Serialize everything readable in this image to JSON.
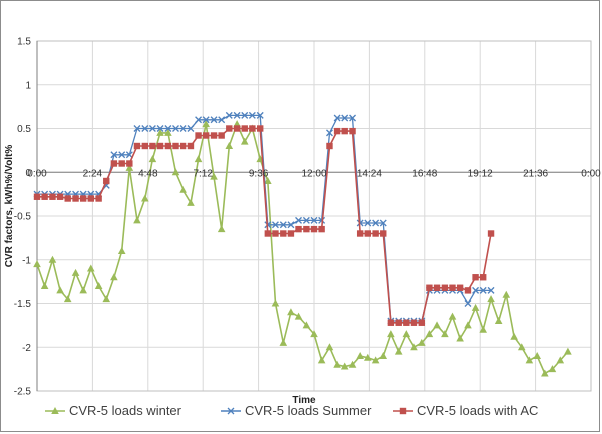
{
  "chart_data": {
    "type": "line",
    "title": "",
    "xlabel": "Time",
    "ylabel": "CVR factors, kWh%/Volt%",
    "ylim": [
      -2.5,
      1.5
    ],
    "y_ticks": [
      "1.5",
      "1",
      "0.5",
      "0",
      "-0.5",
      "-1",
      "-1.5",
      "-2",
      "-2.5"
    ],
    "x_tick_labels": [
      "0:00",
      "2:24",
      "4:48",
      "7:12",
      "9:36",
      "12:00",
      "14:24",
      "16:48",
      "19:12",
      "21:36",
      "0:00"
    ],
    "x_range_hours": [
      0,
      24
    ],
    "grid": true,
    "legend_position": "bottom",
    "series": [
      {
        "name": "CVR-5 loads winter",
        "color": "#9bbb59",
        "marker": "triangle",
        "points": [
          [
            0.0,
            -1.05
          ],
          [
            0.33,
            -1.3
          ],
          [
            0.67,
            -1.0
          ],
          [
            1.0,
            -1.35
          ],
          [
            1.33,
            -1.45
          ],
          [
            1.67,
            -1.15
          ],
          [
            2.0,
            -1.35
          ],
          [
            2.33,
            -1.1
          ],
          [
            2.67,
            -1.3
          ],
          [
            3.0,
            -1.45
          ],
          [
            3.33,
            -1.2
          ],
          [
            3.67,
            -0.9
          ],
          [
            4.0,
            0.05
          ],
          [
            4.33,
            -0.55
          ],
          [
            4.67,
            -0.3
          ],
          [
            5.0,
            0.15
          ],
          [
            5.33,
            0.45
          ],
          [
            5.67,
            0.45
          ],
          [
            6.0,
            0.0
          ],
          [
            6.33,
            -0.2
          ],
          [
            6.67,
            -0.35
          ],
          [
            7.0,
            0.15
          ],
          [
            7.33,
            0.55
          ],
          [
            7.67,
            -0.05
          ],
          [
            8.0,
            -0.65
          ],
          [
            8.33,
            0.3
          ],
          [
            8.67,
            0.55
          ],
          [
            9.0,
            0.35
          ],
          [
            9.33,
            0.5
          ],
          [
            9.67,
            0.15
          ],
          [
            10.0,
            -0.1
          ],
          [
            10.33,
            -1.5
          ],
          [
            10.67,
            -1.95
          ],
          [
            11.0,
            -1.6
          ],
          [
            11.33,
            -1.65
          ],
          [
            11.67,
            -1.75
          ],
          [
            12.0,
            -1.85
          ],
          [
            12.33,
            -2.15
          ],
          [
            12.67,
            -2.0
          ],
          [
            13.0,
            -2.2
          ],
          [
            13.33,
            -2.22
          ],
          [
            13.67,
            -2.2
          ],
          [
            14.0,
            -2.1
          ],
          [
            14.33,
            -2.12
          ],
          [
            14.67,
            -2.15
          ],
          [
            15.0,
            -2.1
          ],
          [
            15.33,
            -1.85
          ],
          [
            15.67,
            -2.05
          ],
          [
            16.0,
            -1.85
          ],
          [
            16.33,
            -2.0
          ],
          [
            16.67,
            -1.95
          ],
          [
            17.0,
            -1.85
          ],
          [
            17.33,
            -1.75
          ],
          [
            17.67,
            -1.85
          ],
          [
            18.0,
            -1.65
          ],
          [
            18.33,
            -1.9
          ],
          [
            18.67,
            -1.75
          ],
          [
            19.0,
            -1.55
          ],
          [
            19.33,
            -1.8
          ],
          [
            19.67,
            -1.45
          ],
          [
            20.0,
            -1.7
          ],
          [
            20.33,
            -1.4
          ],
          [
            20.67,
            -1.88
          ],
          [
            21.0,
            -2.0
          ],
          [
            21.33,
            -2.15
          ],
          [
            21.67,
            -2.1
          ],
          [
            22.0,
            -2.3
          ],
          [
            22.33,
            -2.25
          ],
          [
            22.67,
            -2.15
          ],
          [
            23.0,
            -2.05
          ]
        ]
      },
      {
        "name": "CVR-5 loads Summer",
        "color": "#4f81bd",
        "marker": "x",
        "points": [
          [
            0.0,
            -0.25
          ],
          [
            0.33,
            -0.25
          ],
          [
            0.67,
            -0.25
          ],
          [
            1.0,
            -0.25
          ],
          [
            1.33,
            -0.25
          ],
          [
            1.67,
            -0.25
          ],
          [
            2.0,
            -0.25
          ],
          [
            2.33,
            -0.25
          ],
          [
            2.67,
            -0.25
          ],
          [
            3.0,
            -0.15
          ],
          [
            3.33,
            0.2
          ],
          [
            3.67,
            0.2
          ],
          [
            4.0,
            0.2
          ],
          [
            4.33,
            0.5
          ],
          [
            4.67,
            0.5
          ],
          [
            5.0,
            0.5
          ],
          [
            5.33,
            0.5
          ],
          [
            5.67,
            0.5
          ],
          [
            6.0,
            0.5
          ],
          [
            6.33,
            0.5
          ],
          [
            6.67,
            0.5
          ],
          [
            7.0,
            0.6
          ],
          [
            7.33,
            0.6
          ],
          [
            7.67,
            0.6
          ],
          [
            8.0,
            0.6
          ],
          [
            8.33,
            0.65
          ],
          [
            8.67,
            0.65
          ],
          [
            9.0,
            0.65
          ],
          [
            9.33,
            0.65
          ],
          [
            9.67,
            0.65
          ],
          [
            10.0,
            -0.6
          ],
          [
            10.33,
            -0.6
          ],
          [
            10.67,
            -0.6
          ],
          [
            11.0,
            -0.6
          ],
          [
            11.33,
            -0.55
          ],
          [
            11.67,
            -0.55
          ],
          [
            12.0,
            -0.55
          ],
          [
            12.33,
            -0.55
          ],
          [
            12.67,
            0.45
          ],
          [
            13.0,
            0.62
          ],
          [
            13.33,
            0.62
          ],
          [
            13.67,
            0.62
          ],
          [
            14.0,
            -0.58
          ],
          [
            14.33,
            -0.58
          ],
          [
            14.67,
            -0.58
          ],
          [
            15.0,
            -0.58
          ],
          [
            15.33,
            -1.7
          ],
          [
            15.67,
            -1.7
          ],
          [
            16.0,
            -1.7
          ],
          [
            16.33,
            -1.7
          ],
          [
            16.67,
            -1.7
          ],
          [
            17.0,
            -1.35
          ],
          [
            17.33,
            -1.35
          ],
          [
            17.67,
            -1.35
          ],
          [
            18.0,
            -1.35
          ],
          [
            18.33,
            -1.35
          ],
          [
            18.67,
            -1.5
          ],
          [
            19.0,
            -1.35
          ],
          [
            19.33,
            -1.35
          ],
          [
            19.67,
            -1.35
          ]
        ]
      },
      {
        "name": "CVR-5 loads with AC",
        "color": "#c0504d",
        "marker": "square",
        "points": [
          [
            0.0,
            -0.28
          ],
          [
            0.33,
            -0.28
          ],
          [
            0.67,
            -0.28
          ],
          [
            1.0,
            -0.28
          ],
          [
            1.33,
            -0.3
          ],
          [
            1.67,
            -0.3
          ],
          [
            2.0,
            -0.3
          ],
          [
            2.33,
            -0.3
          ],
          [
            2.67,
            -0.3
          ],
          [
            3.0,
            -0.1
          ],
          [
            3.33,
            0.1
          ],
          [
            3.67,
            0.1
          ],
          [
            4.0,
            0.1
          ],
          [
            4.33,
            0.3
          ],
          [
            4.67,
            0.3
          ],
          [
            5.0,
            0.3
          ],
          [
            5.33,
            0.3
          ],
          [
            5.67,
            0.3
          ],
          [
            6.0,
            0.3
          ],
          [
            6.33,
            0.3
          ],
          [
            6.67,
            0.3
          ],
          [
            7.0,
            0.42
          ],
          [
            7.33,
            0.42
          ],
          [
            7.67,
            0.42
          ],
          [
            8.0,
            0.42
          ],
          [
            8.33,
            0.5
          ],
          [
            8.67,
            0.5
          ],
          [
            9.0,
            0.5
          ],
          [
            9.33,
            0.5
          ],
          [
            9.67,
            0.5
          ],
          [
            10.0,
            -0.7
          ],
          [
            10.33,
            -0.7
          ],
          [
            10.67,
            -0.7
          ],
          [
            11.0,
            -0.7
          ],
          [
            11.33,
            -0.65
          ],
          [
            11.67,
            -0.65
          ],
          [
            12.0,
            -0.65
          ],
          [
            12.33,
            -0.65
          ],
          [
            12.67,
            0.3
          ],
          [
            13.0,
            0.47
          ],
          [
            13.33,
            0.47
          ],
          [
            13.67,
            0.47
          ],
          [
            14.0,
            -0.7
          ],
          [
            14.33,
            -0.7
          ],
          [
            14.67,
            -0.7
          ],
          [
            15.0,
            -0.7
          ],
          [
            15.33,
            -1.72
          ],
          [
            15.67,
            -1.72
          ],
          [
            16.0,
            -1.72
          ],
          [
            16.33,
            -1.72
          ],
          [
            16.67,
            -1.72
          ],
          [
            17.0,
            -1.32
          ],
          [
            17.33,
            -1.32
          ],
          [
            17.67,
            -1.32
          ],
          [
            18.0,
            -1.32
          ],
          [
            18.33,
            -1.32
          ],
          [
            18.67,
            -1.35
          ],
          [
            19.0,
            -1.2
          ],
          [
            19.33,
            -1.2
          ],
          [
            19.67,
            -0.7
          ]
        ]
      }
    ]
  }
}
